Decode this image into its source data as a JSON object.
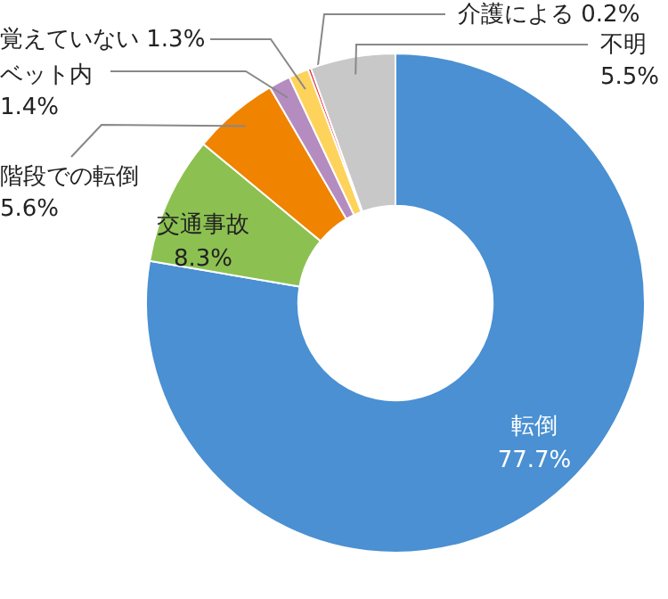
{
  "chart_data": {
    "type": "donut",
    "categories": [
      "転倒",
      "交通事故",
      "階段での転倒",
      "ベット内",
      "覚えていない",
      "介護による",
      "不明"
    ],
    "values": [
      77.7,
      8.3,
      5.6,
      1.4,
      1.3,
      0.2,
      5.5
    ],
    "value_labels": [
      "77.7%",
      "8.3%",
      "5.6%",
      "1.4%",
      "1.3%",
      "0.2%",
      "5.5%"
    ],
    "colors": [
      "#4a90d2",
      "#8cc152",
      "#f08300",
      "#b48cc0",
      "#fdd35c",
      "#e8303c",
      "#c8c8c8"
    ]
  }
}
